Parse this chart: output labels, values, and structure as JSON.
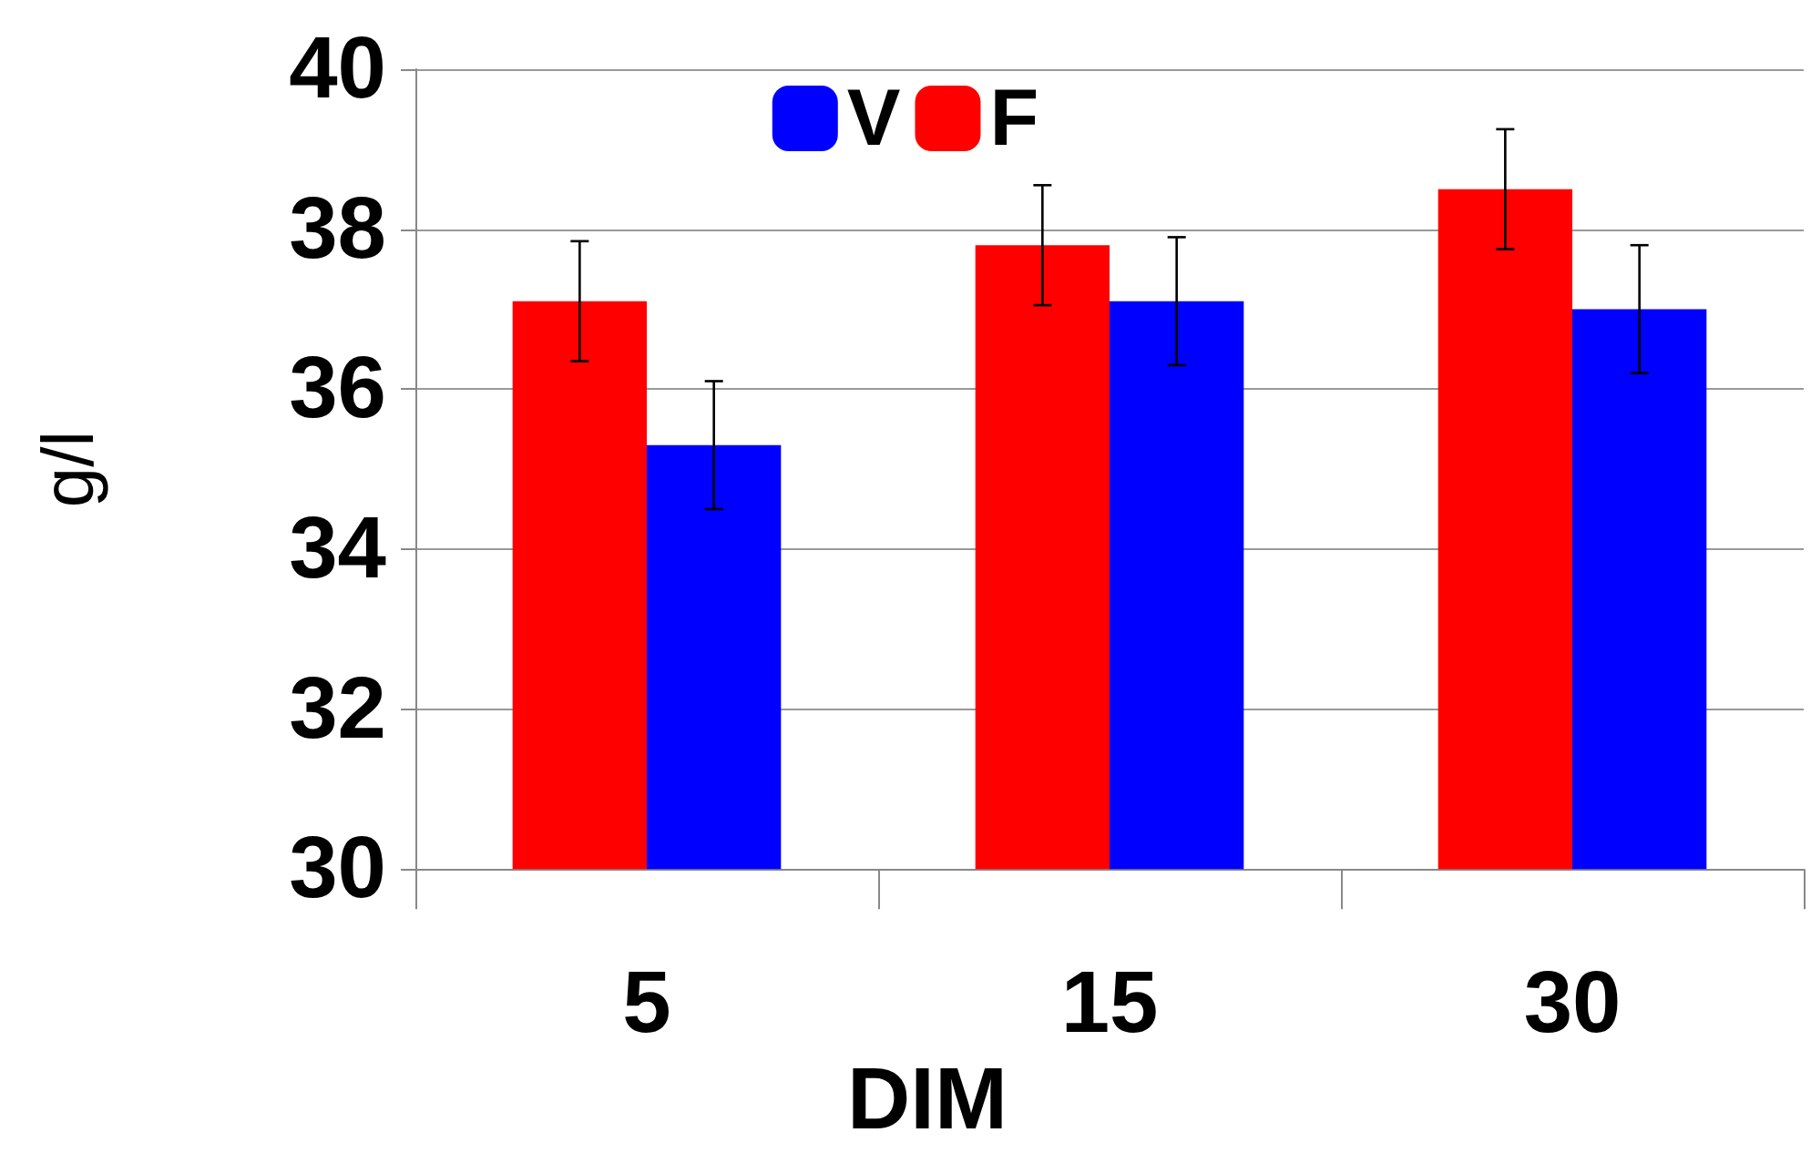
{
  "chart_data": {
    "type": "bar",
    "xlabel": "DIM",
    "ylabel": "g/l",
    "categories": [
      "5",
      "15",
      "30"
    ],
    "series": [
      {
        "name": "F",
        "color": "#ff0000",
        "values": [
          37.1,
          37.8,
          38.5
        ],
        "errors": [
          0.75,
          0.75,
          0.75
        ]
      },
      {
        "name": "V",
        "color": "#0000ff",
        "values": [
          35.3,
          37.1,
          37.0
        ],
        "errors": [
          0.8,
          0.8,
          0.8
        ]
      }
    ],
    "ylim": [
      30,
      40
    ],
    "yticks": [
      30,
      32,
      34,
      36,
      38,
      40
    ],
    "grid": "y",
    "legend": "top"
  }
}
